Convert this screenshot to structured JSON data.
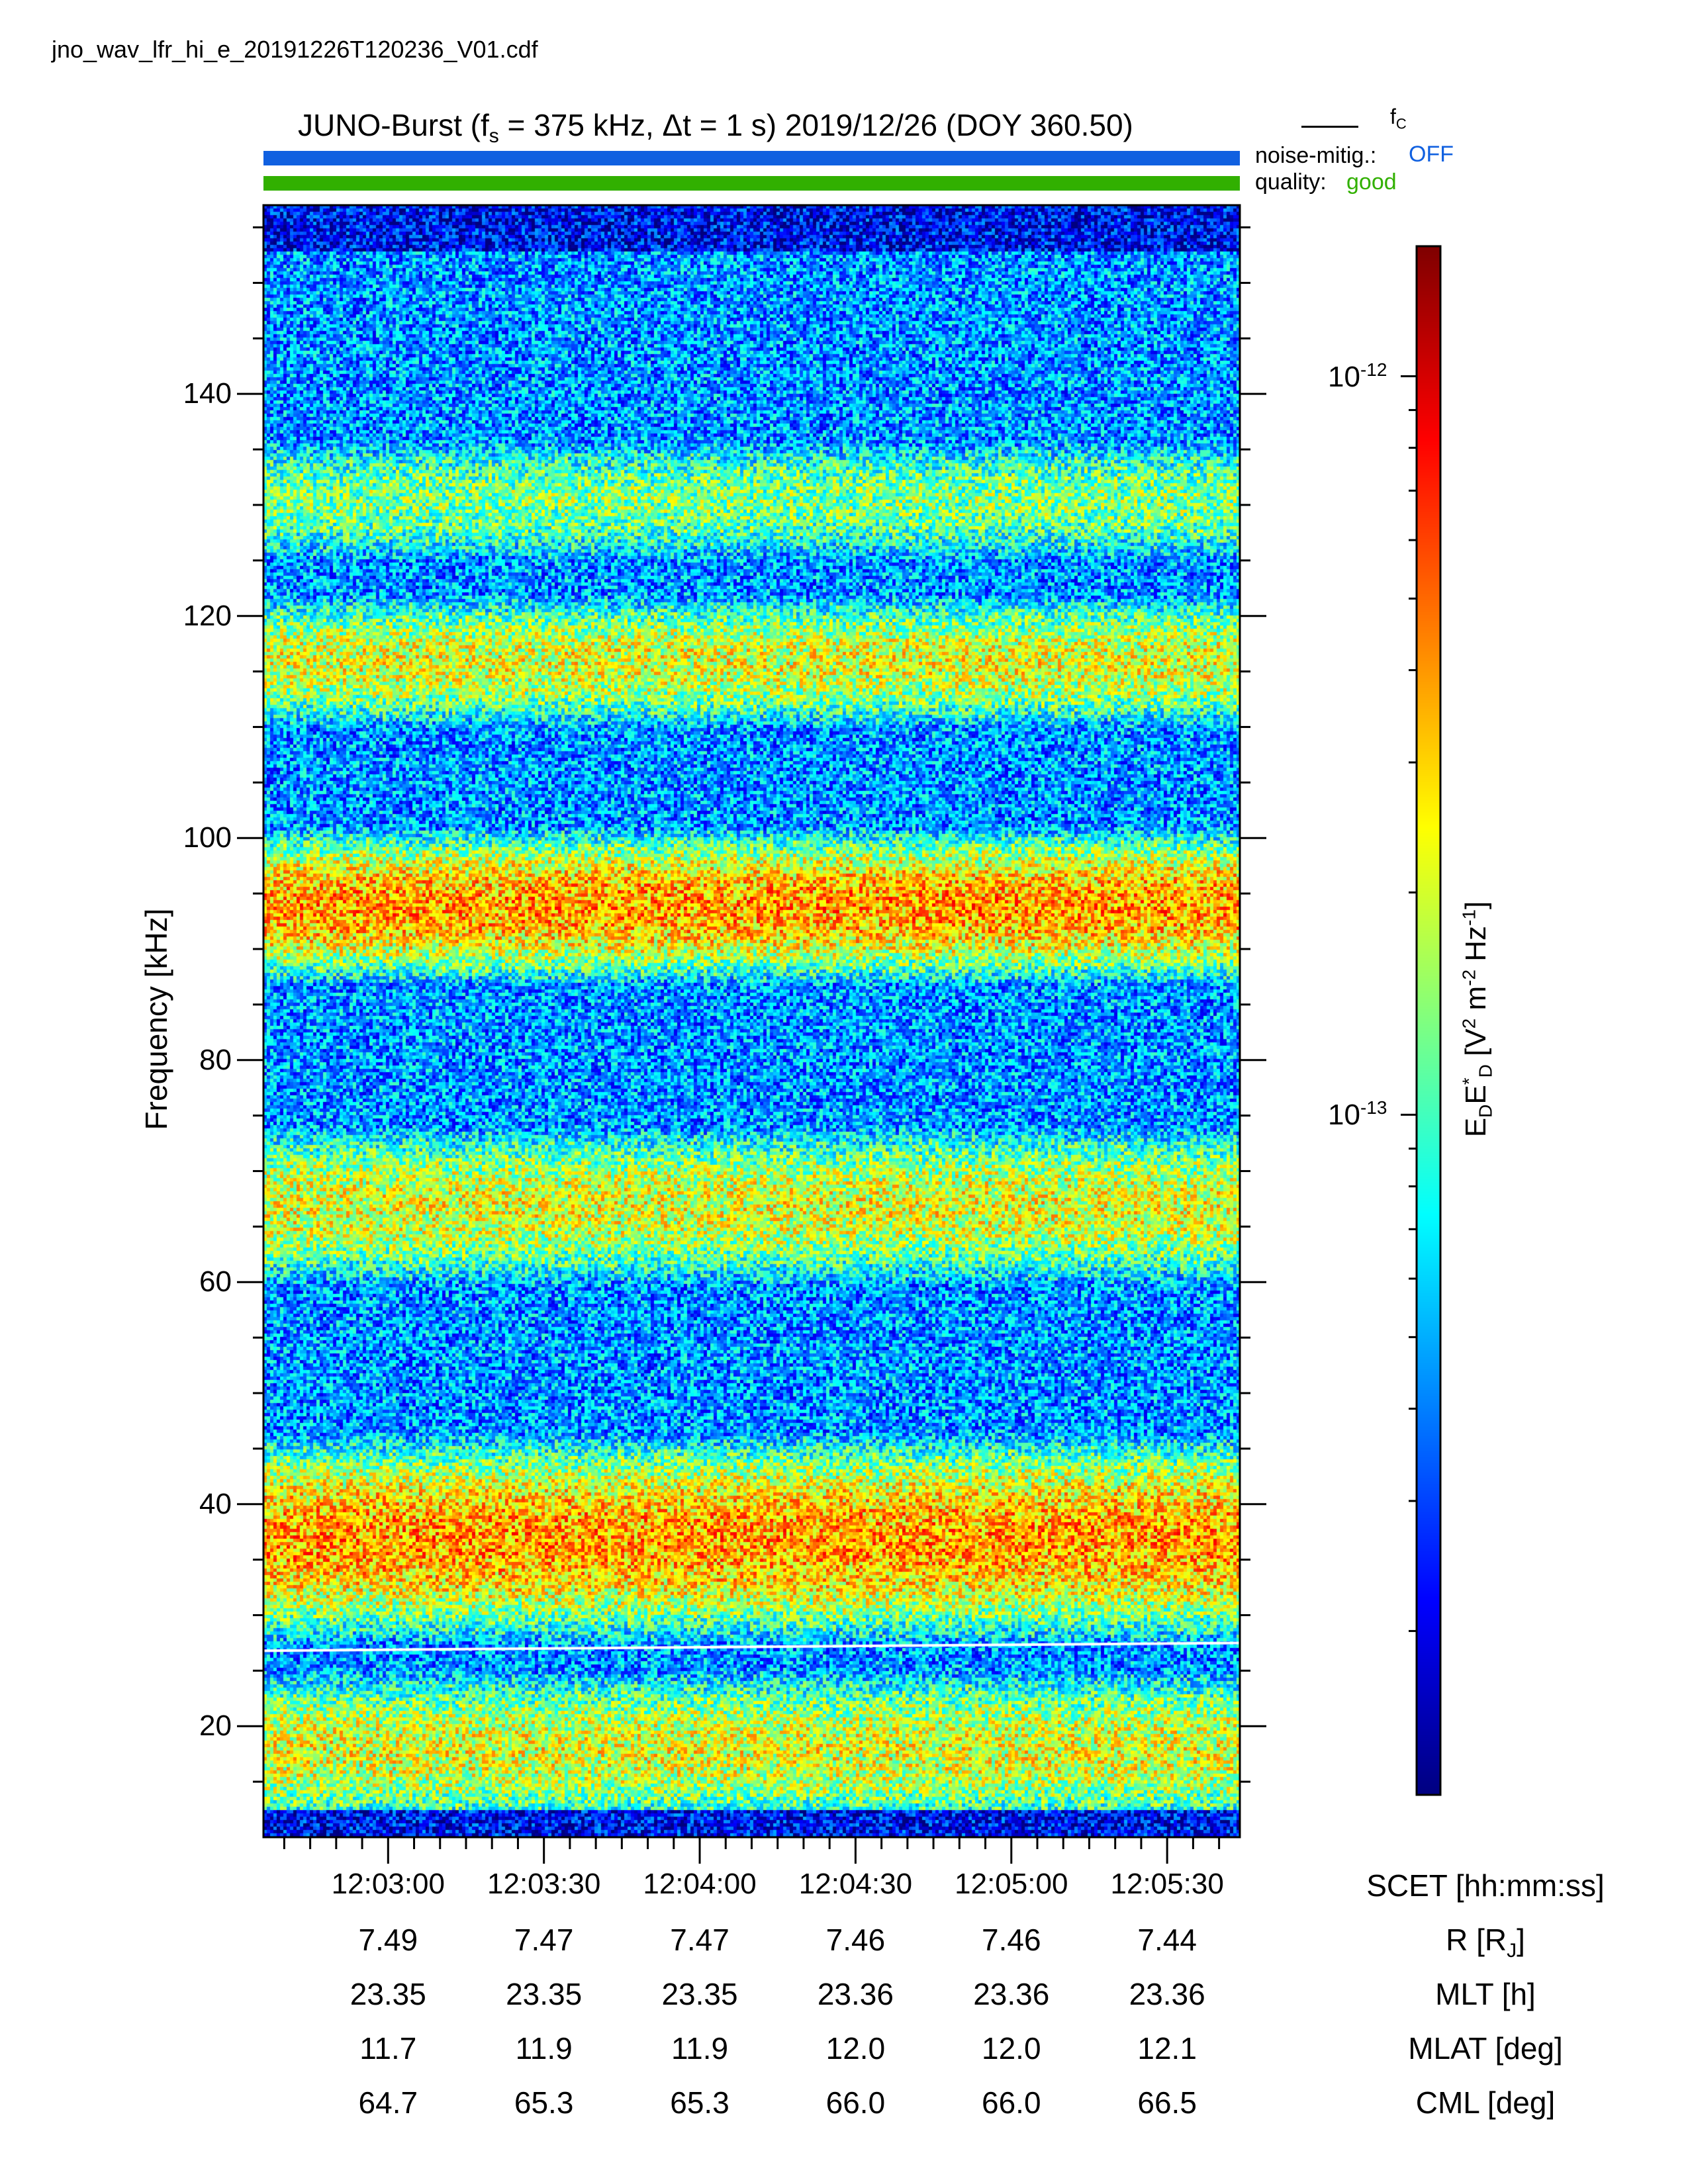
{
  "file_name": "jno_wav_lfr_hi_e_20191226T120236_V01.cdf",
  "header": {
    "title_prefix": "JUNO-Burst (f",
    "title_sub": "s",
    "title_suffix": " = 375 kHz, Δt = 1 s)  2019/12/26 (DOY 360.50)",
    "fc_symbol": "f",
    "fc_sub": "C",
    "noise_label": "noise-mitig.:",
    "noise_value": "OFF",
    "quality_label": "quality:",
    "quality_value": "good"
  },
  "colors": {
    "noise_bar": "#1060e0",
    "quality_bar": "#31b000",
    "fc_line": "#ffffff"
  },
  "colorbar": {
    "label_main": "E",
    "label_full": "E_D E*_D [V^2 m^-2 Hz^-1]",
    "colormap": "jet",
    "scale": "log",
    "range": [
      1.2e-14,
      1.5e-12
    ],
    "tick1_base": "10",
    "tick1_exp": "-12",
    "tick2_base": "10",
    "tick2_exp": "-13"
  },
  "chart_data": {
    "type": "heatmap",
    "title": "JUNO-Burst (fs = 375 kHz, Δt = 1 s) 2019/12/26 (DOY 360.50)",
    "ylabel": "Frequency [kHz]",
    "xlabel": "SCET [hh:mm:ss]",
    "ylim": [
      10,
      157
    ],
    "y_ticks": [
      20,
      40,
      60,
      80,
      100,
      120,
      140
    ],
    "x_range": [
      "12:02:36",
      "12:05:44"
    ],
    "x_ticks": [
      "12:03:00",
      "12:03:30",
      "12:04:00",
      "12:04:30",
      "12:05:00",
      "12:05:30"
    ],
    "z_label": "EDED* [V2 m-2 Hz-1]",
    "z_scale": "log",
    "z_range": [
      1.2e-14,
      1.5e-12
    ],
    "emission_bands": [
      {
        "f_low": 12,
        "f_high": 24,
        "level": "moderate"
      },
      {
        "f_low": 29,
        "f_high": 45,
        "level": "high"
      },
      {
        "f_low": 61,
        "f_high": 73,
        "level": "moderate"
      },
      {
        "f_low": 88,
        "f_high": 100,
        "level": "high"
      },
      {
        "f_low": 111,
        "f_high": 121,
        "level": "moderate"
      },
      {
        "f_low": 126,
        "f_high": 135,
        "level": "low"
      }
    ],
    "fc_line": {
      "name": "fC",
      "f_start": 26.8,
      "f_end": 27.5
    },
    "ephemeris": {
      "labels": [
        "SCET [hh:mm:ss]",
        "R [RJ]",
        "MLT [h]",
        "MLAT [deg]",
        "CML [deg]"
      ],
      "R": [
        "7.49",
        "7.47",
        "7.47",
        "7.46",
        "7.46",
        "7.44"
      ],
      "MLT": [
        "23.35",
        "23.35",
        "23.35",
        "23.36",
        "23.36",
        "23.36"
      ],
      "MLAT": [
        "11.7",
        "11.9",
        "11.9",
        "12.0",
        "12.0",
        "12.1"
      ],
      "CML": [
        "64.7",
        "65.3",
        "65.3",
        "66.0",
        "66.0",
        "66.5"
      ]
    },
    "grid": false
  },
  "axis_labels": {
    "y_text": "Frequency [kHz]",
    "scet": "SCET [hh:mm:ss]",
    "r_text": "R [R",
    "r_sub": "J",
    "r_close": "]",
    "mlt": "MLT [h]",
    "mlat": "MLAT [deg]",
    "cml": "CML [deg]"
  }
}
